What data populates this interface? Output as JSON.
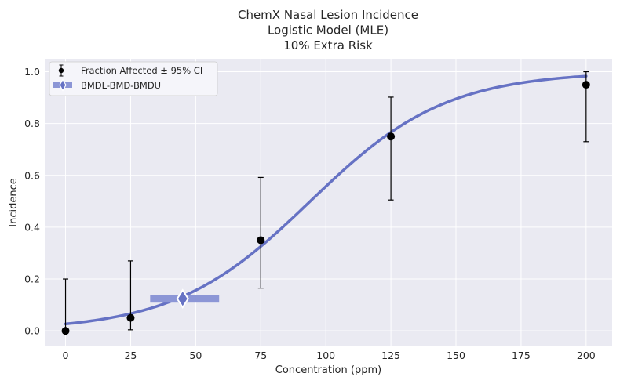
{
  "chart_data": {
    "type": "scatter",
    "title_lines": [
      "ChemX Nasal Lesion Incidence",
      "Logistic Model (MLE)",
      "10% Extra Risk"
    ],
    "xlabel": "Concentration (ppm)",
    "ylabel": "Incidence",
    "xlim": [
      -8,
      210
    ],
    "ylim": [
      -0.06,
      1.05
    ],
    "xticks": [
      0,
      25,
      50,
      75,
      100,
      125,
      150,
      175,
      200
    ],
    "yticks": [
      0.0,
      0.2,
      0.4,
      0.6,
      0.8,
      1.0
    ],
    "xtick_labels": [
      "0",
      "25",
      "50",
      "75",
      "100",
      "125",
      "150",
      "175",
      "200"
    ],
    "ytick_labels": [
      "0.0",
      "0.2",
      "0.4",
      "0.6",
      "0.8",
      "1.0"
    ],
    "grid": true,
    "legend_position": "top-left",
    "observed": {
      "name": "Fraction Affected ± 95% CI",
      "x": [
        0,
        25,
        75,
        125,
        200
      ],
      "y": [
        0.0,
        0.05,
        0.35,
        0.75,
        0.95
      ],
      "ci_low": [
        0.0,
        0.004,
        0.165,
        0.505,
        0.73
      ],
      "ci_high": [
        0.2,
        0.27,
        0.592,
        0.902,
        1.0
      ]
    },
    "model": {
      "type": "logistic",
      "intercept": -3.6,
      "slope": 0.0383,
      "x_range": [
        0,
        200
      ]
    },
    "bmd": {
      "name": "BMDL-BMD-BMDU",
      "bmdl": 32.5,
      "bmd": 45,
      "bmdu": 59,
      "y": 0.124
    },
    "colors": {
      "model": "#6672c4",
      "bmd_bar": "#8c96d6",
      "points": "#000000",
      "background": "#eaeaf2",
      "grid": "#ffffff"
    }
  }
}
